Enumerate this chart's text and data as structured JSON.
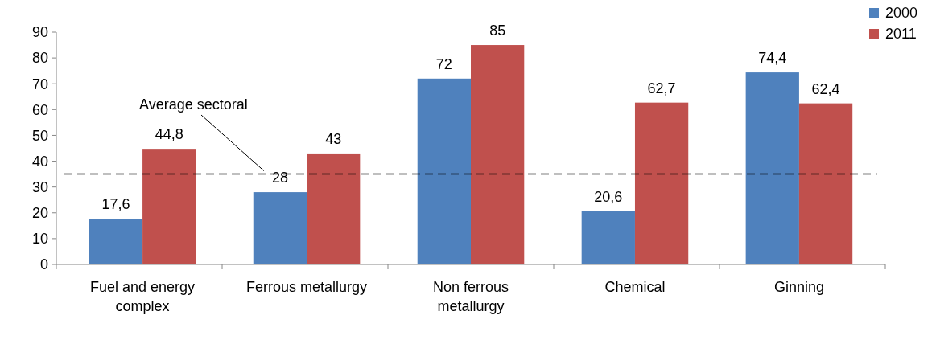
{
  "chart_data": {
    "type": "bar",
    "categories": [
      "Fuel and energy complex",
      "Ferrous metallurgy",
      "Non ferrous metallurgy",
      "Chemical",
      "Ginning"
    ],
    "series": [
      {
        "name": "2000",
        "color": "#4f81bd",
        "values": [
          17.6,
          28,
          72,
          20.6,
          74.4
        ],
        "value_labels": [
          "17,6",
          "28",
          "72",
          "20,6",
          "74,4"
        ]
      },
      {
        "name": "2011",
        "color": "#c0504d",
        "values": [
          44.8,
          43,
          85,
          62.7,
          62.4
        ],
        "value_labels": [
          "44,8",
          "43",
          "85",
          "62,7",
          "62,4"
        ]
      }
    ],
    "ylim": [
      0,
      90
    ],
    "yticks": [
      0,
      10,
      20,
      30,
      40,
      50,
      60,
      70,
      80,
      90
    ],
    "grid": false,
    "legend": "top right",
    "ref_lines": [
      {
        "axis": "y",
        "value": 35,
        "label": "Average sectoral",
        "line_style": "dashed",
        "color": "#000000"
      }
    ]
  }
}
